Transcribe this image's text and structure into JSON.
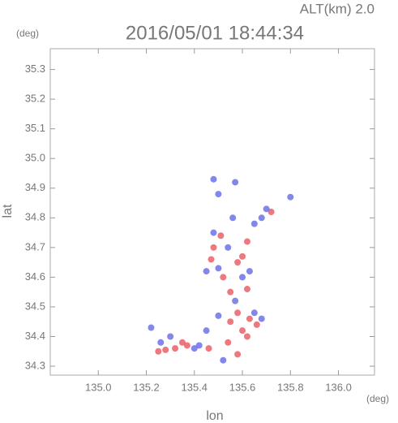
{
  "chart_data": {
    "type": "scatter",
    "title": "2016/05/01 18:44:34",
    "annotation": "ALT(km)  2.0",
    "y_unit": "(deg)",
    "x_unit": "(deg)",
    "xlabel": "lon",
    "ylabel": "lat",
    "xlim": [
      134.8,
      136.15
    ],
    "ylim": [
      34.27,
      35.37
    ],
    "xticks": [
      {
        "value": 135,
        "label": "135.0"
      },
      135.2,
      135.4,
      135.6,
      135.8,
      {
        "value": 136,
        "label": "136.0"
      }
    ],
    "yticks": [
      34.3,
      34.4,
      34.5,
      34.6,
      34.7,
      34.8,
      34.9,
      {
        "value": 35,
        "label": "35.0"
      },
      35.1,
      35.2,
      35.3
    ],
    "series": [
      {
        "color": "#e8585e",
        "x": [
          135.25,
          135.28,
          135.32,
          135.35,
          135.37,
          135.55,
          135.6,
          135.62,
          135.58,
          135.52,
          135.58,
          135.6,
          135.62,
          135.55,
          135.48,
          135.72,
          135.47,
          135.63,
          135.66,
          135.54,
          135.46,
          135.58,
          135.51,
          135.62
        ],
        "y": [
          34.35,
          34.355,
          34.36,
          34.38,
          34.37,
          34.45,
          34.42,
          34.4,
          34.48,
          34.6,
          34.65,
          34.67,
          34.56,
          34.55,
          34.7,
          34.82,
          34.66,
          34.46,
          34.44,
          34.38,
          34.36,
          34.34,
          34.74,
          34.72
        ]
      },
      {
        "color": "#6468e6",
        "x": [
          135.22,
          135.26,
          135.3,
          135.42,
          135.45,
          135.5,
          135.65,
          135.68,
          135.6,
          135.5,
          135.54,
          135.48,
          135.5,
          135.56,
          135.65,
          135.68,
          135.8,
          135.45,
          135.57,
          135.63,
          135.4,
          135.52,
          135.7,
          135.57,
          135.48
        ],
        "y": [
          34.43,
          34.38,
          34.4,
          34.37,
          34.42,
          34.47,
          34.48,
          34.46,
          34.6,
          34.63,
          34.7,
          34.75,
          34.88,
          34.8,
          34.78,
          34.8,
          34.87,
          34.62,
          34.52,
          34.62,
          34.36,
          34.32,
          34.83,
          34.92,
          34.93
        ]
      }
    ]
  }
}
